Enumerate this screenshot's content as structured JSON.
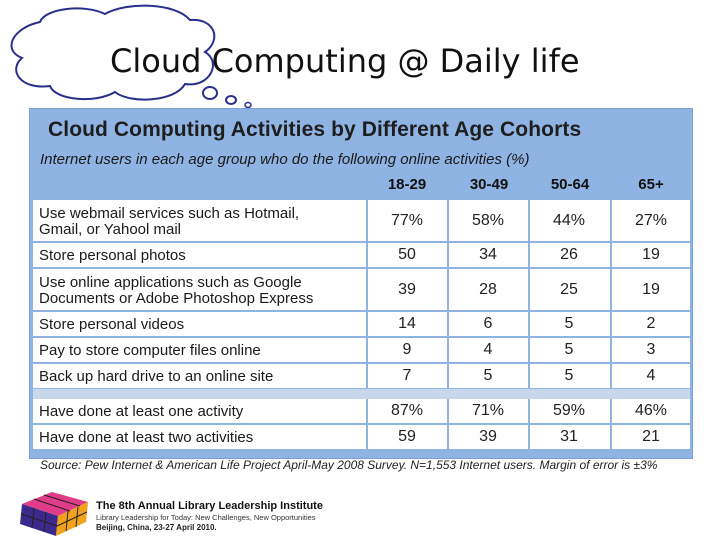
{
  "slide": {
    "title": "Cloud Computing @ Daily life"
  },
  "table": {
    "title": "Cloud Computing Activities by Different Age Cohorts",
    "subtitle": "Internet users in each age group who do the following online activities (%)",
    "columns": [
      "18-29",
      "30-49",
      "50-64",
      "65+"
    ],
    "rows": [
      {
        "label": [
          "Use webmail services such as Hotmail,",
          "Gmail, or Yahool mail"
        ],
        "values": [
          "77%",
          "58%",
          "44%",
          "27%"
        ]
      },
      {
        "label": [
          "Store personal photos"
        ],
        "values": [
          "50",
          "34",
          "26",
          "19"
        ]
      },
      {
        "label": [
          "Use online applications such as Google",
          "Documents or Adobe Photoshop Express"
        ],
        "values": [
          "39",
          "28",
          "25",
          "19"
        ]
      },
      {
        "label": [
          "Store personal videos"
        ],
        "values": [
          "14",
          "6",
          "5",
          "2"
        ]
      },
      {
        "label": [
          "Pay to store computer files online"
        ],
        "values": [
          "9",
          "4",
          "5",
          "3"
        ]
      },
      {
        "label": [
          "Back up hard drive to an online site"
        ],
        "values": [
          "7",
          "5",
          "5",
          "4"
        ]
      },
      {
        "label": [
          "Have done at least one activity"
        ],
        "values": [
          "87%",
          "71%",
          "59%",
          "46%"
        ]
      },
      {
        "label": [
          "Have done at least two activities"
        ],
        "values": [
          "59",
          "39",
          "31",
          "21"
        ]
      }
    ],
    "source": "Source: Pew Internet & American Life Project April-May 2008 Survey. N=1,553 Internet users. Margin of error is ±3%"
  },
  "footer": {
    "line1": "The 8th Annual Library Leadership Institute",
    "line2": "Library Leadership for Today: New Challenges, New Opportunities",
    "line3": "Beijing, China, 23-27 April 2010."
  },
  "colors": {
    "table_band": "#8fb4e3",
    "row_bg": "#ffffff"
  }
}
